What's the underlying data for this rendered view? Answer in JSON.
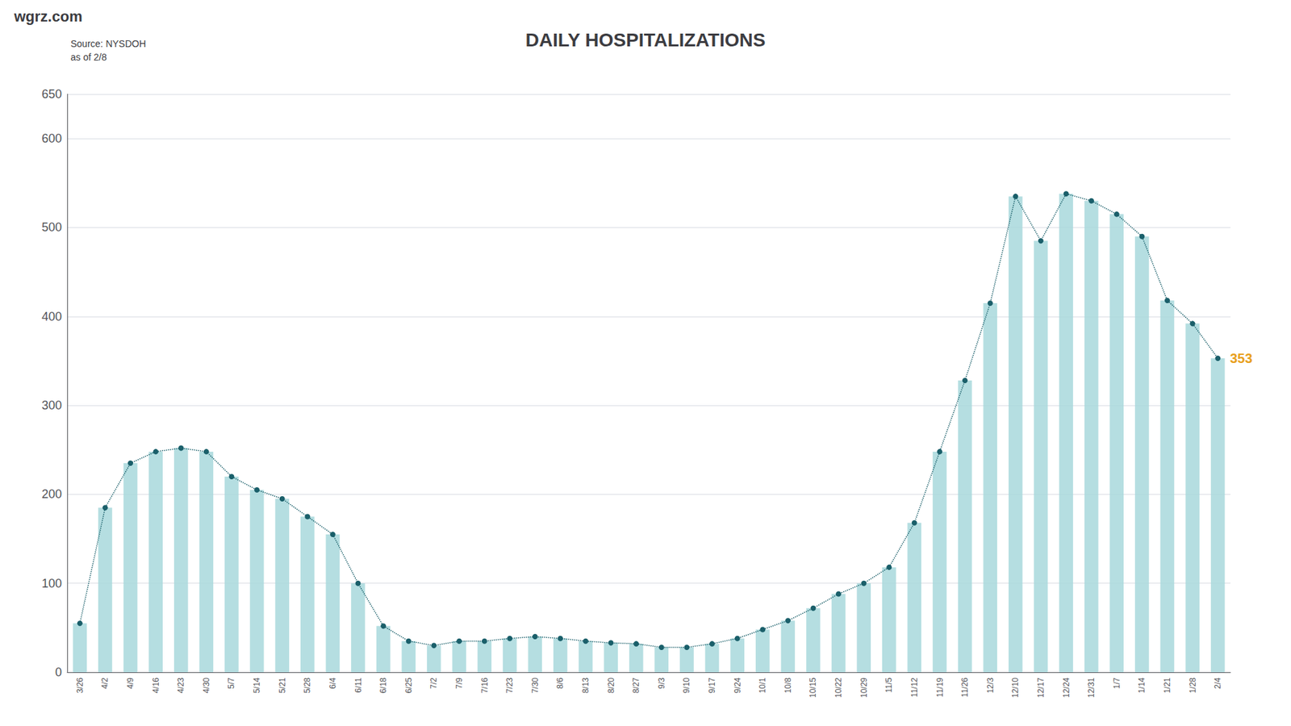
{
  "chart_data": {
    "type": "bar",
    "title": "DAILY HOSPITALIZATIONS",
    "subtitle": "Source: NYSDOH\nas of 2/8",
    "annotations": [
      {
        "text": "353",
        "x": "2/4",
        "y": 353,
        "color": "#E8A020"
      },
      {
        "text": "wgrz.com"
      }
    ],
    "categories": [
      "3/26",
      "4/2",
      "4/9",
      "4/16",
      "4/23",
      "4/30",
      "5/7",
      "5/14",
      "5/21",
      "5/28",
      "6/4",
      "6/11",
      "6/18",
      "6/25",
      "7/2",
      "7/9",
      "7/16",
      "7/23",
      "7/30",
      "8/6",
      "8/13",
      "8/20",
      "8/27",
      "9/3",
      "9/10",
      "9/17",
      "9/24",
      "10/1",
      "10/8",
      "10/15",
      "10/22",
      "10/29",
      "11/5",
      "11/12",
      "11/19",
      "11/26",
      "12/3",
      "12/10",
      "12/17",
      "12/24",
      "12/31",
      "1/7",
      "1/14",
      "1/21",
      "1/28",
      "2/4"
    ],
    "series": [
      {
        "type": "bar",
        "color": "#a8d8dc",
        "values": [
          55,
          185,
          235,
          248,
          252,
          248,
          220,
          205,
          195,
          175,
          155,
          100,
          52,
          35,
          30,
          35,
          35,
          38,
          40,
          38,
          35,
          33,
          32,
          28,
          28,
          32,
          38,
          48,
          58,
          72,
          88,
          100,
          118,
          168,
          248,
          328,
          415,
          535,
          485,
          538,
          530,
          515,
          490,
          418,
          392,
          353
        ]
      },
      {
        "type": "line",
        "color": "#1a5f6a",
        "marker": "circle",
        "line_style": "dotted",
        "values": [
          55,
          185,
          235,
          248,
          252,
          248,
          220,
          205,
          195,
          175,
          155,
          100,
          52,
          35,
          30,
          35,
          35,
          38,
          40,
          38,
          35,
          33,
          32,
          28,
          28,
          32,
          38,
          48,
          58,
          72,
          88,
          100,
          118,
          168,
          248,
          328,
          415,
          535,
          485,
          538,
          530,
          515,
          490,
          418,
          392,
          353
        ]
      }
    ],
    "ylim": [
      0,
      650
    ],
    "yticks": [
      0,
      100,
      200,
      300,
      400,
      500,
      600
    ],
    "grid": true
  }
}
